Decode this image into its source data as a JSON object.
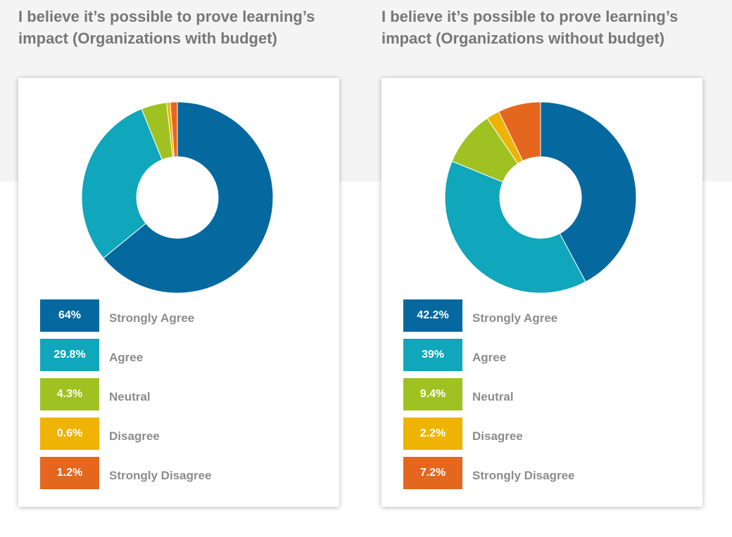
{
  "chart_data": [
    {
      "type": "pie",
      "title": "I believe it’s possible to prove learning’s impact (Organizations with budget)",
      "categories": [
        "Strongly Agree",
        "Agree",
        "Neutral",
        "Disagree",
        "Strongly Disagree"
      ],
      "values": [
        64,
        29.8,
        4.3,
        0.6,
        1.2
      ],
      "value_labels": [
        "64%",
        "29.8%",
        "4.3%",
        "0.6%",
        "1.2%"
      ],
      "colors": [
        "#05699f",
        "#10a6bb",
        "#9fc222",
        "#efb303",
        "#e5661f"
      ],
      "legend": "bottom"
    },
    {
      "type": "pie",
      "title": "I believe it’s possible to prove learning’s impact (Organizations without budget)",
      "categories": [
        "Strongly Agree",
        "Agree",
        "Neutral",
        "Disagree",
        "Strongly Disagree"
      ],
      "values": [
        42.2,
        39,
        9.4,
        2.2,
        7.2
      ],
      "value_labels": [
        "42.2%",
        "39%",
        "9.4%",
        "2.2%",
        "7.2%"
      ],
      "colors": [
        "#05699f",
        "#10a6bb",
        "#9fc222",
        "#efb303",
        "#e5661f"
      ],
      "legend": "bottom"
    }
  ]
}
